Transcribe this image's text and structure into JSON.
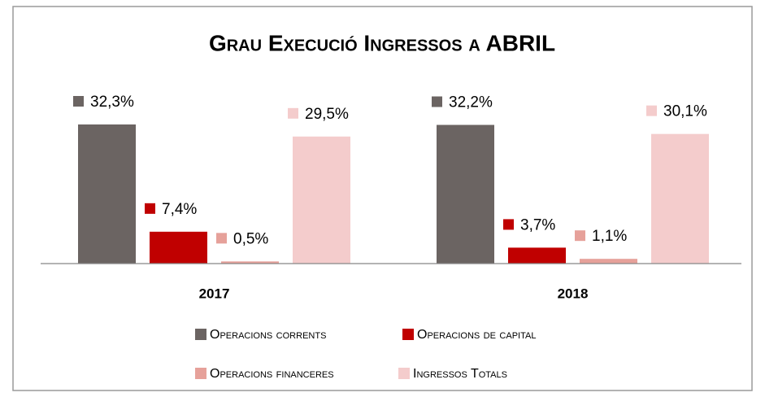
{
  "chart_data": {
    "type": "bar",
    "title": "Grau Execució Ingressos a ABRIL",
    "categories": [
      "2017",
      "2018"
    ],
    "series": [
      {
        "name": "Operacions corrents",
        "color": "#6b6462",
        "values": [
          32.3,
          32.2
        ],
        "value_labels": [
          "32,3%",
          "32,2%"
        ]
      },
      {
        "name": "Operacions de capital",
        "color": "#c00000",
        "values": [
          7.4,
          3.7
        ],
        "value_labels": [
          "7,4%",
          "3,7%"
        ]
      },
      {
        "name": "Operacions financeres",
        "color": "#e6a19a",
        "values": [
          0.5,
          1.1
        ],
        "value_labels": [
          "0,5%",
          "1,1%"
        ]
      },
      {
        "name": "Ingressos Totals",
        "color": "#f4cccc",
        "values": [
          29.5,
          30.1
        ],
        "value_labels": [
          "29,5%",
          "30,1%"
        ]
      }
    ],
    "legend": "bottom"
  }
}
